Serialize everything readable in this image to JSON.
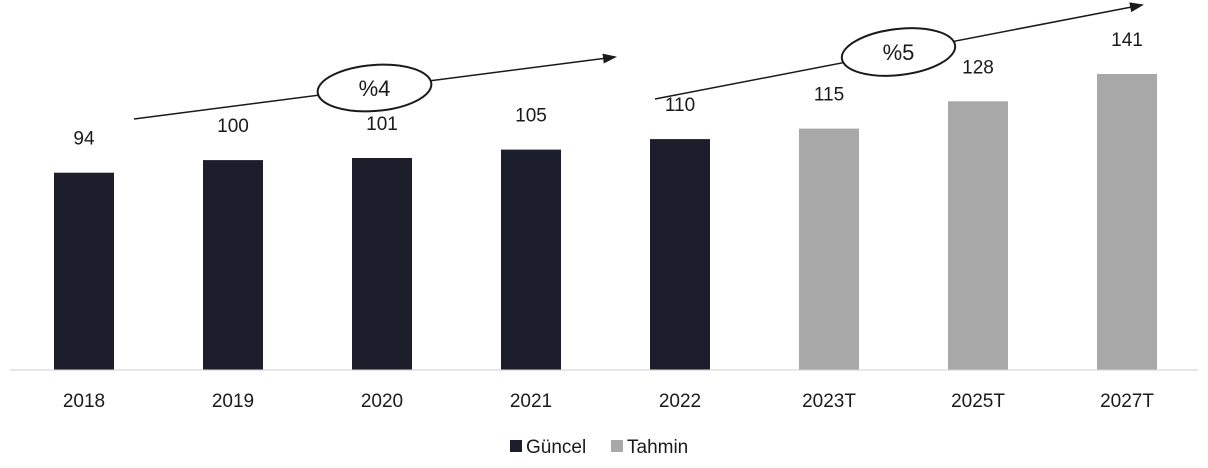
{
  "chart_data": {
    "type": "bar",
    "categories": [
      "2018",
      "2019",
      "2020",
      "2021",
      "2022",
      "2023T",
      "2025T",
      "2027T"
    ],
    "values": [
      94,
      100,
      101,
      105,
      110,
      115,
      128,
      141
    ],
    "series_index": [
      0,
      0,
      0,
      0,
      0,
      1,
      1,
      1
    ],
    "series": [
      {
        "name": "Güncel",
        "color": "#1c1f2b"
      },
      {
        "name": "Tahmin",
        "color": "#a8a8a8"
      }
    ],
    "annotations": [
      {
        "text": "%4",
        "from_category": "2018",
        "to_category": "2022"
      },
      {
        "text": "%5",
        "from_category": "2022",
        "to_category": "2027T"
      }
    ],
    "title": "",
    "xlabel": "",
    "ylabel": "",
    "ylim": [
      0,
      141
    ],
    "grid": false,
    "legend": "bottom-center"
  }
}
